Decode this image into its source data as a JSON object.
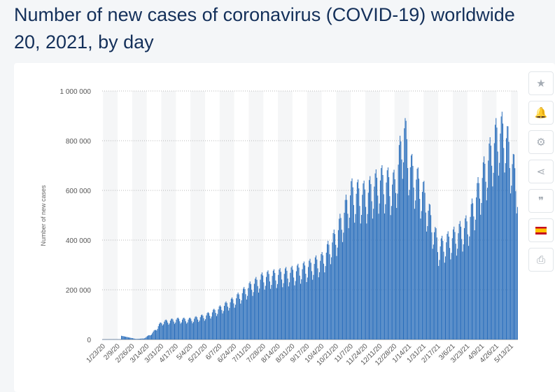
{
  "page": {
    "title_lines": [
      "Number of new cases of coronavirus (COVID-19) worldwide",
      "20, 2021, by day"
    ]
  },
  "toolbar": {
    "items": [
      {
        "icon": "star-icon",
        "glyph": "★"
      },
      {
        "icon": "bell-icon",
        "glyph": "🔔"
      },
      {
        "icon": "gear-icon",
        "glyph": "⚙"
      },
      {
        "icon": "share-icon",
        "glyph": "⋖"
      },
      {
        "icon": "quote-icon",
        "glyph": "❞"
      },
      {
        "icon": "spain-flag-icon",
        "glyph": ""
      },
      {
        "icon": "print-icon",
        "glyph": "⎙"
      }
    ]
  },
  "chart_data": {
    "type": "bar",
    "ylabel": "Number of new cases",
    "ylim": [
      0,
      1000000
    ],
    "yticks": [
      0,
      200000,
      400000,
      600000,
      800000,
      1000000
    ],
    "ytick_labels": [
      "0",
      "200 000",
      "400 000",
      "600 000",
      "800 000",
      "1 000 000"
    ],
    "x_start": "1/22/20",
    "x_end": "5/20/21",
    "xtick_labels": [
      "1/23/20",
      "2/9/20",
      "2/26/20",
      "3/14/20",
      "3/31/20",
      "4/17/20",
      "5/4/20",
      "5/21/20",
      "6/7/20",
      "6/24/20",
      "7/11/20",
      "7/28/20",
      "8/14/20",
      "8/31/20",
      "9/17/20",
      "10/4/20",
      "10/21/20",
      "11/7/20",
      "11/24/20",
      "12/11/20",
      "12/28/20",
      "1/14/21",
      "1/31/21",
      "2/17/21",
      "3/6/21",
      "3/23/21",
      "4/9/21",
      "4/26/21",
      "5/13/21"
    ],
    "bar_color": "#2a6ebb",
    "grid": true,
    "series": [
      {
        "x_start": "1/22/20",
        "trend_x": [
          "1/22/20",
          "2/12/20",
          "2/13/20",
          "3/1/20",
          "3/10/20",
          "3/20/20",
          "3/31/20",
          "4/17/20",
          "5/4/20",
          "5/21/20",
          "6/7/20",
          "6/24/20",
          "7/11/20",
          "7/28/20",
          "8/14/20",
          "8/31/20",
          "9/17/20",
          "10/4/20",
          "10/21/20",
          "11/7/20",
          "11/24/20",
          "12/11/20",
          "12/28/20",
          "1/8/21",
          "1/14/21",
          "1/31/21",
          "2/17/21",
          "3/6/21",
          "3/23/21",
          "4/9/21",
          "4/26/21",
          "5/5/21",
          "5/13/21",
          "5/20/21"
        ],
        "trend_y": [
          500,
          1000,
          15000,
          2000,
          4000,
          25000,
          70000,
          80000,
          80000,
          95000,
          125000,
          160000,
          210000,
          250000,
          260000,
          270000,
          290000,
          320000,
          420000,
          590000,
          580000,
          640000,
          620000,
          850000,
          700000,
          580000,
          370000,
          410000,
          460000,
          650000,
          820000,
          840000,
          720000,
          620000
        ]
      }
    ]
  }
}
